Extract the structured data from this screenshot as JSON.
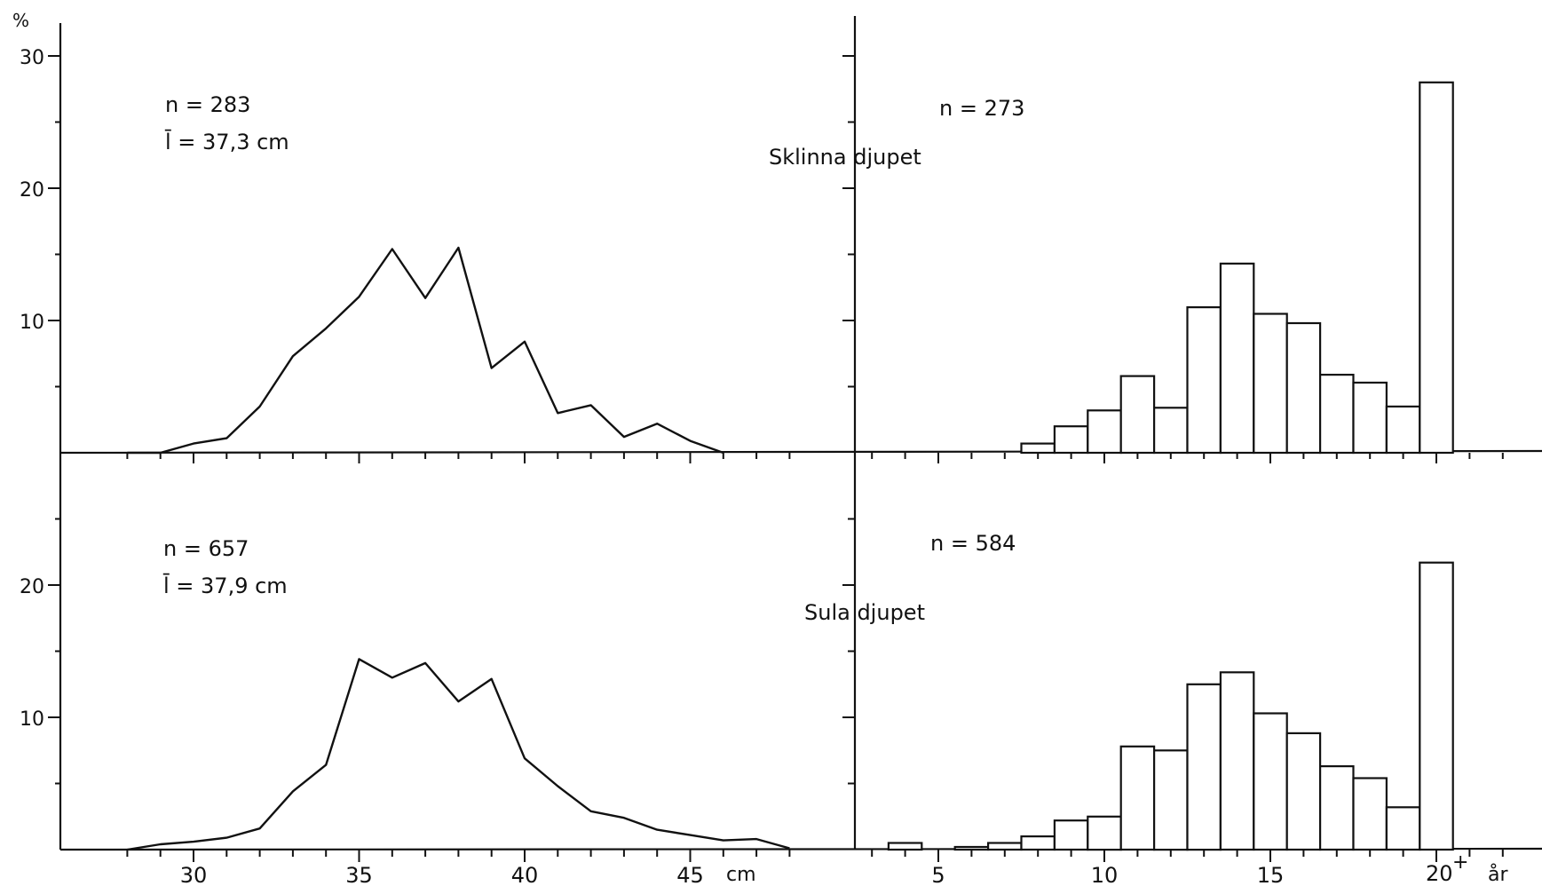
{
  "figure": {
    "y_unit": "%",
    "panel_labels": {
      "top": "Sklinna djupet",
      "bottom": "Sula djupet"
    },
    "left_x_unit": "cm",
    "right_x_unit": "år",
    "right_last_label": "20",
    "right_last_mark": "+"
  },
  "chart_data": [
    {
      "type": "line",
      "panel": "top-left",
      "annotations": [
        "n = 283",
        "l̄ = 37,3 cm"
      ],
      "x": [
        28,
        29,
        30,
        31,
        32,
        33,
        34,
        35,
        36,
        37,
        38,
        39,
        40,
        41,
        42,
        43,
        44,
        45,
        46
      ],
      "values": [
        0,
        0,
        0.7,
        1.1,
        3.5,
        7.3,
        9.4,
        11.8,
        15.4,
        11.7,
        15.5,
        6.4,
        8.4,
        3.0,
        3.6,
        1.2,
        2.2,
        0.9,
        0
      ],
      "xlabel": "cm",
      "ylabel": "%",
      "xlim": [
        26,
        48
      ],
      "ylim": [
        0,
        30
      ],
      "xticks": [
        30,
        35,
        40,
        45
      ],
      "yticks": [
        10,
        20,
        30
      ]
    },
    {
      "type": "bar",
      "panel": "top-right",
      "annotations": [
        "n = 273"
      ],
      "categories": [
        8,
        9,
        10,
        11,
        12,
        13,
        14,
        15,
        16,
        17,
        18,
        19,
        20
      ],
      "values": [
        0.7,
        2.0,
        3.2,
        5.8,
        3.4,
        11.0,
        14.3,
        10.5,
        9.8,
        5.9,
        5.3,
        3.5,
        28.0
      ],
      "xlabel": "år",
      "ylabel": "%",
      "xlim": [
        2.5,
        23
      ],
      "ylim": [
        0,
        30
      ],
      "xticks": [
        5,
        10,
        15,
        20
      ]
    },
    {
      "type": "line",
      "panel": "bottom-left",
      "annotations": [
        "n = 657",
        "l̄ = 37,9 cm"
      ],
      "x": [
        28,
        29,
        30,
        31,
        32,
        33,
        34,
        35,
        36,
        37,
        38,
        39,
        40,
        41,
        42,
        43,
        44,
        45,
        46,
        47,
        48
      ],
      "values": [
        0,
        0.4,
        0.6,
        0.9,
        1.6,
        4.4,
        6.4,
        14.4,
        13.0,
        14.1,
        11.2,
        12.9,
        6.9,
        4.8,
        2.9,
        2.4,
        1.5,
        1.1,
        0.7,
        0.8,
        0.1
      ],
      "xlabel": "cm",
      "ylabel": "%",
      "xlim": [
        26,
        48
      ],
      "ylim": [
        0,
        30
      ],
      "xticks": [
        30,
        35,
        40,
        45
      ],
      "yticks": [
        10,
        20
      ]
    },
    {
      "type": "bar",
      "panel": "bottom-right",
      "annotations": [
        "n = 584"
      ],
      "categories": [
        4,
        5,
        6,
        7,
        8,
        9,
        10,
        11,
        12,
        13,
        14,
        15,
        16,
        17,
        18,
        19,
        20
      ],
      "values": [
        0.5,
        0,
        0.2,
        0.5,
        1.0,
        2.2,
        2.5,
        7.8,
        7.5,
        12.5,
        13.4,
        10.3,
        8.8,
        6.3,
        5.4,
        3.2,
        21.7
      ],
      "xlabel": "år",
      "ylabel": "%",
      "xlim": [
        2.5,
        23
      ],
      "ylim": [
        0,
        30
      ],
      "xticks": [
        5,
        10,
        15,
        20
      ]
    }
  ]
}
